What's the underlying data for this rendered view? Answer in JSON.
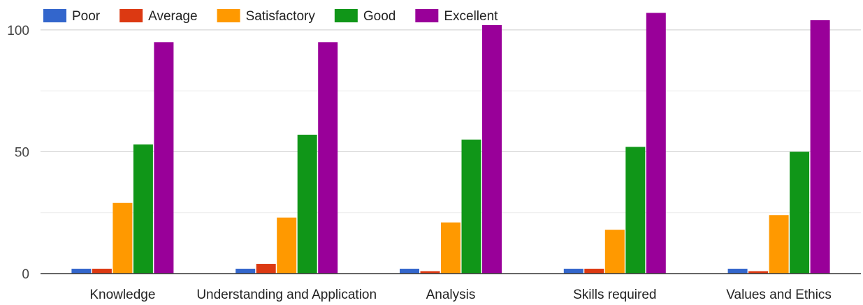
{
  "chart_data": {
    "type": "bar",
    "categories": [
      "Knowledge",
      "Understanding and Application",
      "Analysis",
      "Skills required",
      "Values and Ethics"
    ],
    "series": [
      {
        "name": "Poor",
        "color": "#3366cc",
        "values": [
          2,
          2,
          2,
          2,
          2
        ]
      },
      {
        "name": "Average",
        "color": "#dc3912",
        "values": [
          2,
          4,
          1,
          2,
          1
        ]
      },
      {
        "name": "Satisfactory",
        "color": "#ff9900",
        "values": [
          29,
          23,
          21,
          18,
          24
        ]
      },
      {
        "name": "Good",
        "color": "#109618",
        "values": [
          53,
          57,
          55,
          52,
          50
        ]
      },
      {
        "name": "Excellent",
        "color": "#990099",
        "values": [
          95,
          95,
          102,
          107,
          104
        ]
      }
    ],
    "yticks": [
      0,
      50,
      100
    ],
    "ylim": [
      0,
      110
    ],
    "grid": true,
    "legend_position": "top-left"
  }
}
